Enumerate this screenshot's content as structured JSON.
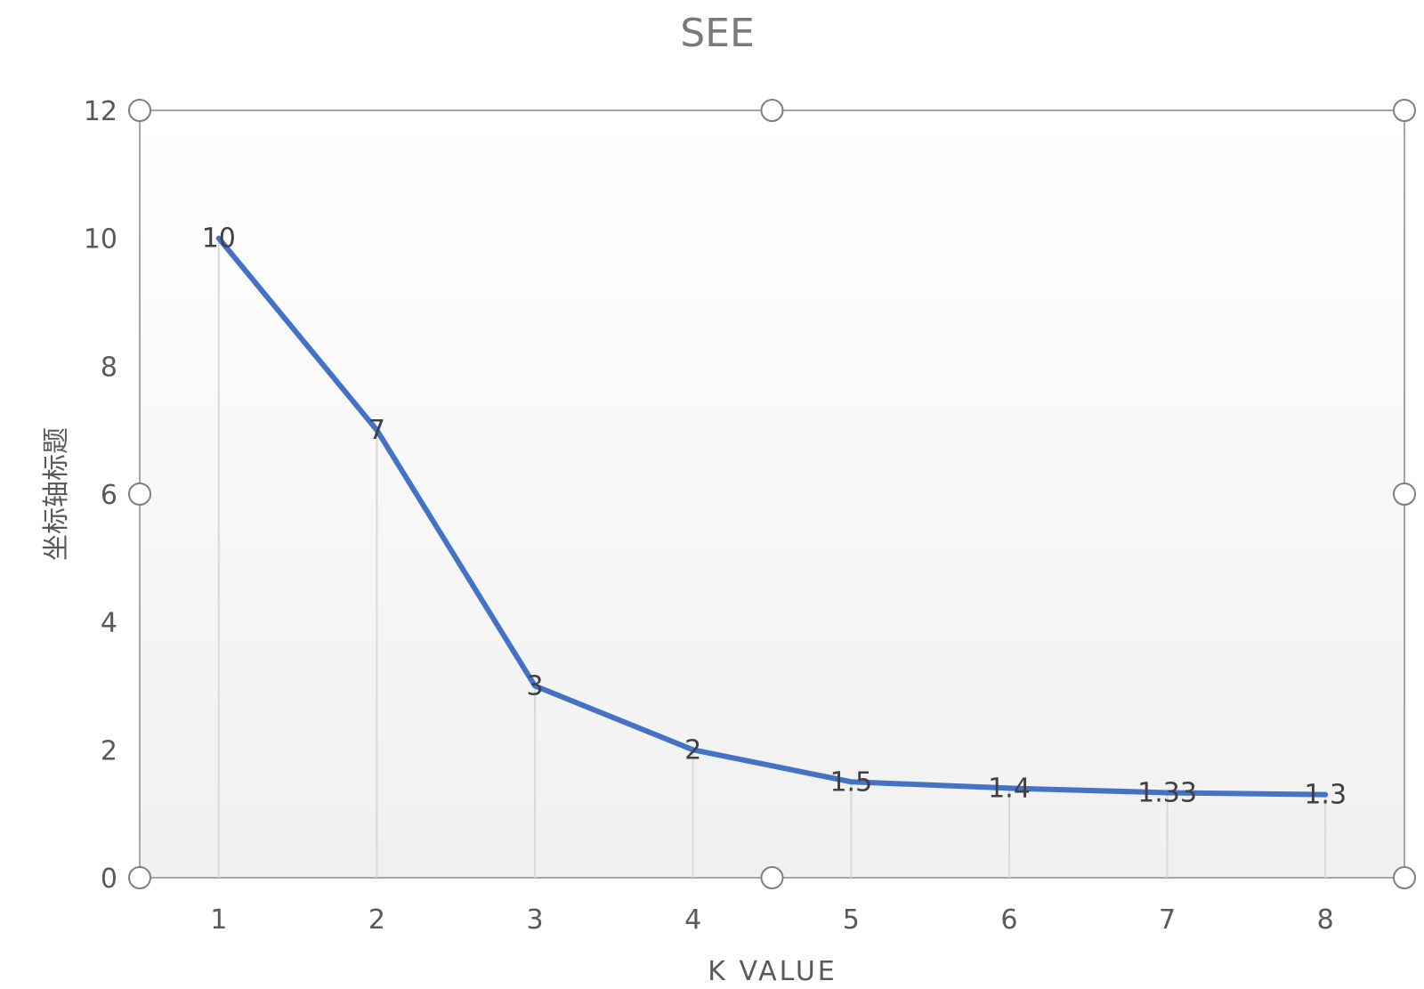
{
  "chart_data": {
    "type": "line",
    "title": "SEE",
    "xlabel": "K VALUE",
    "ylabel": "坐标轴标题",
    "categories": [
      "1",
      "2",
      "3",
      "4",
      "5",
      "6",
      "7",
      "8"
    ],
    "series": [
      {
        "values": [
          10,
          7,
          3,
          2,
          1.5,
          1.4,
          1.33,
          1.3
        ]
      }
    ],
    "data_labels": [
      "10",
      "7",
      "3",
      "2",
      "1.5",
      "1.4",
      "1.33",
      "1.3"
    ],
    "ylim": [
      0,
      12
    ],
    "yticks": [
      "0",
      "2",
      "4",
      "6",
      "8",
      "10",
      "12"
    ],
    "grid": false,
    "drop_lines": true,
    "legend": "none",
    "line_color": "#4472c4"
  }
}
